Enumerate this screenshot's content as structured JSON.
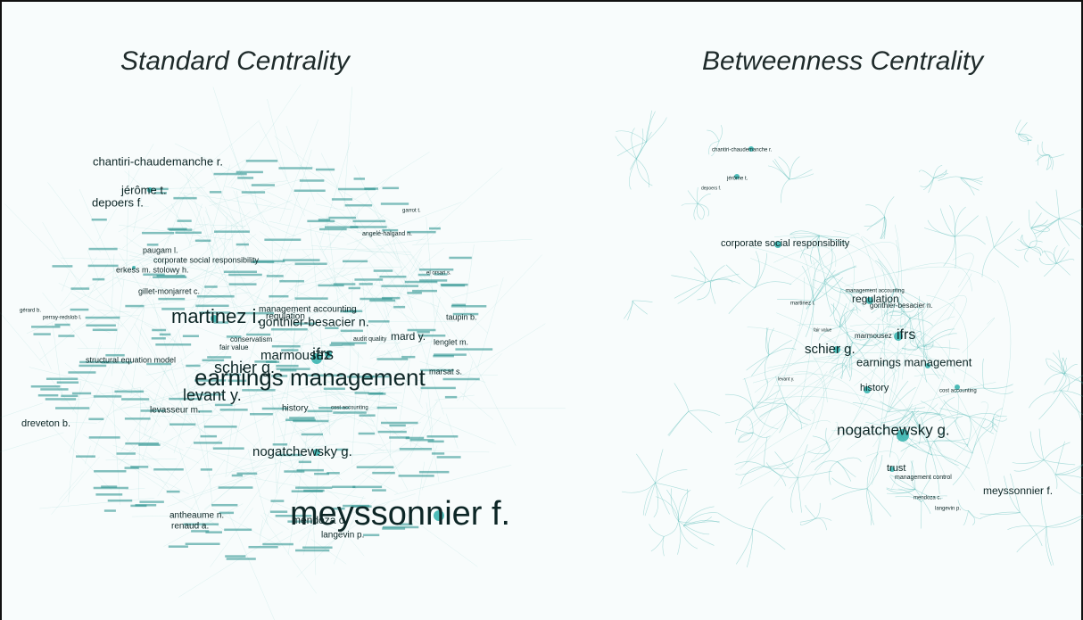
{
  "panels": [
    {
      "title": "Standard Centrality",
      "labels": [
        "chantiri-chaudemanche r.",
        "jérôme t.",
        "depoers f.",
        "paugam l.",
        "corporate social responsibility",
        "erkess m. stolowy h.",
        "gillet-monjarret c.",
        "martinez i.",
        "management accounting",
        "regulation",
        "gonthier-besacier n.",
        "conservatism",
        "fair value",
        "marmousez",
        "ifrs",
        "schier g.",
        "earnings management",
        "levant y.",
        "levasseur m.",
        "history",
        "mard y.",
        "taupin b.",
        "lenglet m.",
        "marsat s.",
        "structural equation model",
        "dreveton b.",
        "nogatchewsky g.",
        "meyssonnier f.",
        "mendoza c.",
        "langevin p.",
        "antheaume n.",
        "renaud a.",
        "el orsari s.",
        "garrot t.",
        "angelé-halgand n.",
        "perray-redslob l.",
        "gérard b.",
        "audit quality",
        "cost accounting"
      ]
    },
    {
      "title": "Betweenness Centrality",
      "labels": [
        "chantiri-chaudemanche r.",
        "jérôme t.",
        "depoers f.",
        "corporate social responsibility",
        "management accounting",
        "regulation",
        "gonthier-besacier n.",
        "martinez i.",
        "fair value",
        "marmousez",
        "ifrs",
        "schier g.",
        "earnings management",
        "levant y.",
        "history",
        "cost accounting",
        "nogatchewsky g.",
        "trust",
        "management control",
        "meyssonnier f.",
        "mendoza c.",
        "langevin p."
      ]
    }
  ]
}
